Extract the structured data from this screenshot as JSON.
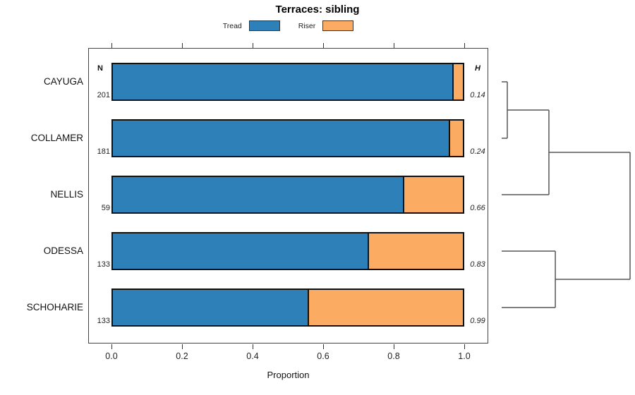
{
  "title": "Terraces: sibling",
  "legend": {
    "items": [
      {
        "label": "Tread",
        "color": "#2E80B8"
      },
      {
        "label": "Riser",
        "color": "#FBAC62"
      }
    ]
  },
  "columns": {
    "n_header": "N",
    "h_header": "H"
  },
  "axis": {
    "label": "Proportion",
    "tick_labels": [
      "0.0",
      "0.2",
      "0.4",
      "0.6",
      "0.8",
      "1.0"
    ]
  },
  "chart_data": {
    "type": "bar",
    "orientation": "horizontal",
    "stacked": true,
    "title": "Terraces: sibling",
    "xlabel": "Proportion",
    "xlim": [
      0.0,
      1.0
    ],
    "x_ticks": [
      0.0,
      0.2,
      0.4,
      0.6,
      0.8,
      1.0
    ],
    "grid": false,
    "legend_position": "top",
    "series_names": [
      "Tread",
      "Riser"
    ],
    "colors": {
      "tread": "#2E80B8",
      "riser": "#FBAC62",
      "bar_border": "#111111",
      "dendrogram_line": "#555555"
    },
    "categories": [
      "CAYUGA",
      "COLLAMER",
      "NELLIS",
      "ODESSA",
      "SCHOHARIE"
    ],
    "rows": [
      {
        "label": "CAYUGA",
        "n": 201,
        "tread": 0.97,
        "riser": 0.03,
        "h": "0.14"
      },
      {
        "label": "COLLAMER",
        "n": 181,
        "tread": 0.96,
        "riser": 0.04,
        "h": "0.24"
      },
      {
        "label": "NELLIS",
        "n": 59,
        "tread": 0.83,
        "riser": 0.17,
        "h": "0.66"
      },
      {
        "label": "ODESSA",
        "n": 133,
        "tread": 0.73,
        "riser": 0.27,
        "h": "0.83"
      },
      {
        "label": "SCHOHARIE",
        "n": 133,
        "tread": 0.56,
        "riser": 0.44,
        "h": "0.99"
      }
    ],
    "dendrogram": {
      "description": "cluster tree joining rows by index; d is normalized join distance 0-1",
      "merges": [
        {
          "a": {
            "leaf": 0
          },
          "b": {
            "leaf": 1
          },
          "d": 0.044
        },
        {
          "a": {
            "merge": 0
          },
          "b": {
            "leaf": 2
          },
          "d": 0.368
        },
        {
          "a": {
            "leaf": 3
          },
          "b": {
            "leaf": 4
          },
          "d": 0.418
        },
        {
          "a": {
            "merge": 1
          },
          "b": {
            "merge": 2
          },
          "d": 1.0
        }
      ]
    }
  }
}
